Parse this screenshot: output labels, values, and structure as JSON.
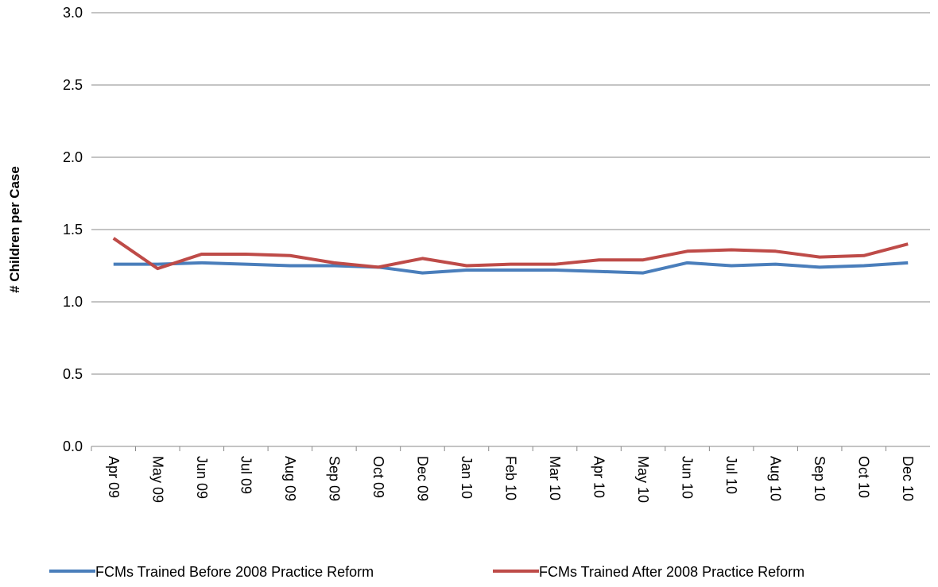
{
  "chart_data": {
    "type": "line",
    "y_label": "# Children per Case",
    "categories": [
      "Apr 09",
      "May 09",
      "Jun 09",
      "Jul 09",
      "Aug 09",
      "Sep 09",
      "Oct 09",
      "Dec 09",
      "Jan 10",
      "Feb 10",
      "Mar 10",
      "Apr 10",
      "May 10",
      "Jun 10",
      "Jul 10",
      "Aug 10",
      "Sep 10",
      "Oct 10",
      "Dec 10"
    ],
    "series": [
      {
        "name": "FCMs Trained Before 2008 Practice Reform",
        "color": "#4a7ebb",
        "values": [
          1.26,
          1.26,
          1.27,
          1.26,
          1.25,
          1.25,
          1.24,
          1.2,
          1.22,
          1.22,
          1.22,
          1.21,
          1.2,
          1.27,
          1.25,
          1.26,
          1.24,
          1.25,
          1.27
        ]
      },
      {
        "name": "FCMs Trained After 2008 Practice Reform",
        "color": "#be4b48",
        "values": [
          1.44,
          1.23,
          1.33,
          1.33,
          1.32,
          1.27,
          1.24,
          1.3,
          1.25,
          1.26,
          1.26,
          1.29,
          1.29,
          1.35,
          1.36,
          1.35,
          1.31,
          1.32,
          1.4
        ]
      }
    ],
    "ylim": [
      0,
      3
    ],
    "yticks": [
      {
        "value": 0,
        "label": "0.0"
      },
      0.5,
      {
        "value": 1,
        "label": "1.0"
      },
      1.5,
      {
        "value": 2,
        "label": "2.0"
      },
      2.5,
      {
        "value": 3,
        "label": "3.0"
      }
    ],
    "grid": true,
    "legend": "bottom"
  }
}
